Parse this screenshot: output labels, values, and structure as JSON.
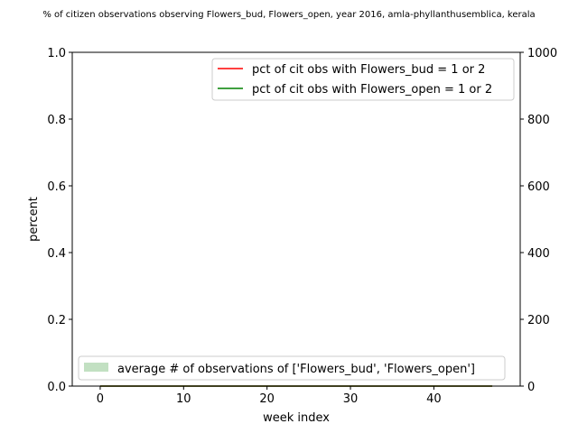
{
  "chart_data": {
    "type": "line",
    "title": "% of citizen observations observing Flowers_bud, Flowers_open, year 2016, amla-phyllanthusemblica, kerala",
    "xlabel": "week index",
    "ylabel": "percent",
    "ylabel_right": "",
    "xlim": [
      -3.35,
      50.35
    ],
    "ylim": [
      0,
      1
    ],
    "ylim_right": [
      0,
      1000
    ],
    "xticks": [
      0,
      10,
      20,
      30,
      40
    ],
    "xtick_labels": [
      "0",
      "10",
      "20",
      "30",
      "40"
    ],
    "yticks": [
      0.0,
      0.2,
      0.4,
      0.6,
      0.8,
      1.0
    ],
    "ytick_labels": [
      "0.0",
      "0.2",
      "0.4",
      "0.6",
      "0.8",
      "1.0"
    ],
    "yticks_right": [
      0,
      200,
      400,
      600,
      800,
      1000
    ],
    "ytick_labels_right": [
      "0",
      "200",
      "400",
      "600",
      "800",
      "1000"
    ],
    "grid": false,
    "series": [
      {
        "name": "pct of cit obs with Flowers_bud = 1 or 2",
        "color": "#ff0000",
        "axis": "left",
        "x": [
          0,
          47
        ],
        "values": [
          0,
          0
        ]
      },
      {
        "name": "pct of cit obs with Flowers_open = 1 or 2",
        "color": "#008000",
        "axis": "left",
        "x": [
          0,
          47
        ],
        "values": [
          0,
          0
        ]
      }
    ],
    "area_series": [
      {
        "name": "average # of observations of ['Flowers_bud', 'Flowers_open']",
        "color": "#c2e0c2",
        "axis": "right",
        "x": [
          0,
          47
        ],
        "values": [
          0,
          0
        ]
      }
    ],
    "legend_lines_position": "upper right",
    "legend_area_position": "lower left"
  }
}
